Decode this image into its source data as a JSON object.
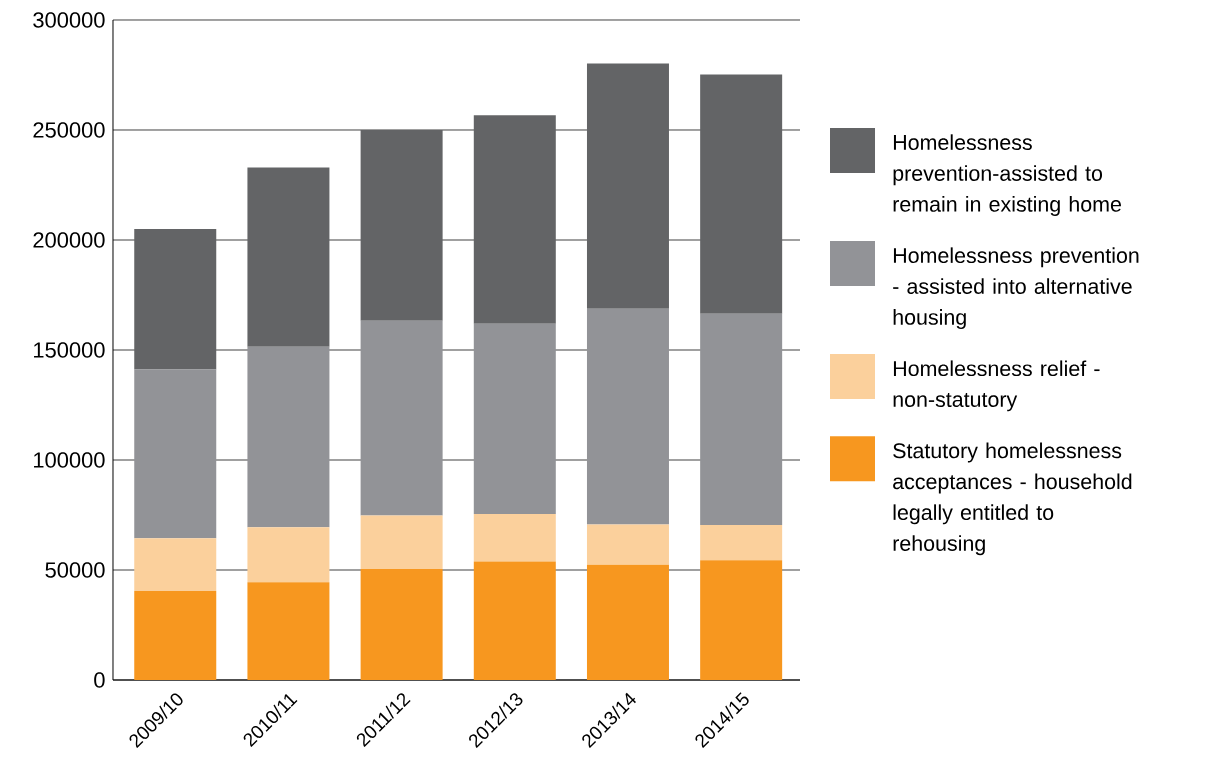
{
  "chart_data": {
    "type": "bar",
    "stacked": true,
    "categories": [
      "2009/10",
      "2010/11",
      "2011/12",
      "2012/13",
      "2013/14",
      "2014/15"
    ],
    "series": [
      {
        "name": "Statutory homelessness acceptances - household legally entitled to rehousing",
        "color": "#f7971f",
        "values": [
          40400,
          44400,
          50400,
          53900,
          52400,
          54400
        ]
      },
      {
        "name": "Homelessness relief - non-statutory",
        "color": "#fbd09c",
        "values": [
          24000,
          25000,
          24400,
          21500,
          18300,
          16000
        ]
      },
      {
        "name": "Homelessness prevention - assisted into alternative housing",
        "color": "#929397",
        "values": [
          76700,
          82100,
          88500,
          86500,
          98000,
          96100
        ]
      },
      {
        "name": "Homelessness prevention-assisted to remain in existing home",
        "color": "#636466",
        "values": [
          63900,
          81500,
          86700,
          94800,
          111500,
          108700
        ]
      }
    ],
    "ylim": [
      0,
      300000
    ],
    "yticks": [
      0,
      50000,
      100000,
      150000,
      200000,
      250000,
      300000
    ],
    "grid": "y",
    "legend": "right"
  }
}
